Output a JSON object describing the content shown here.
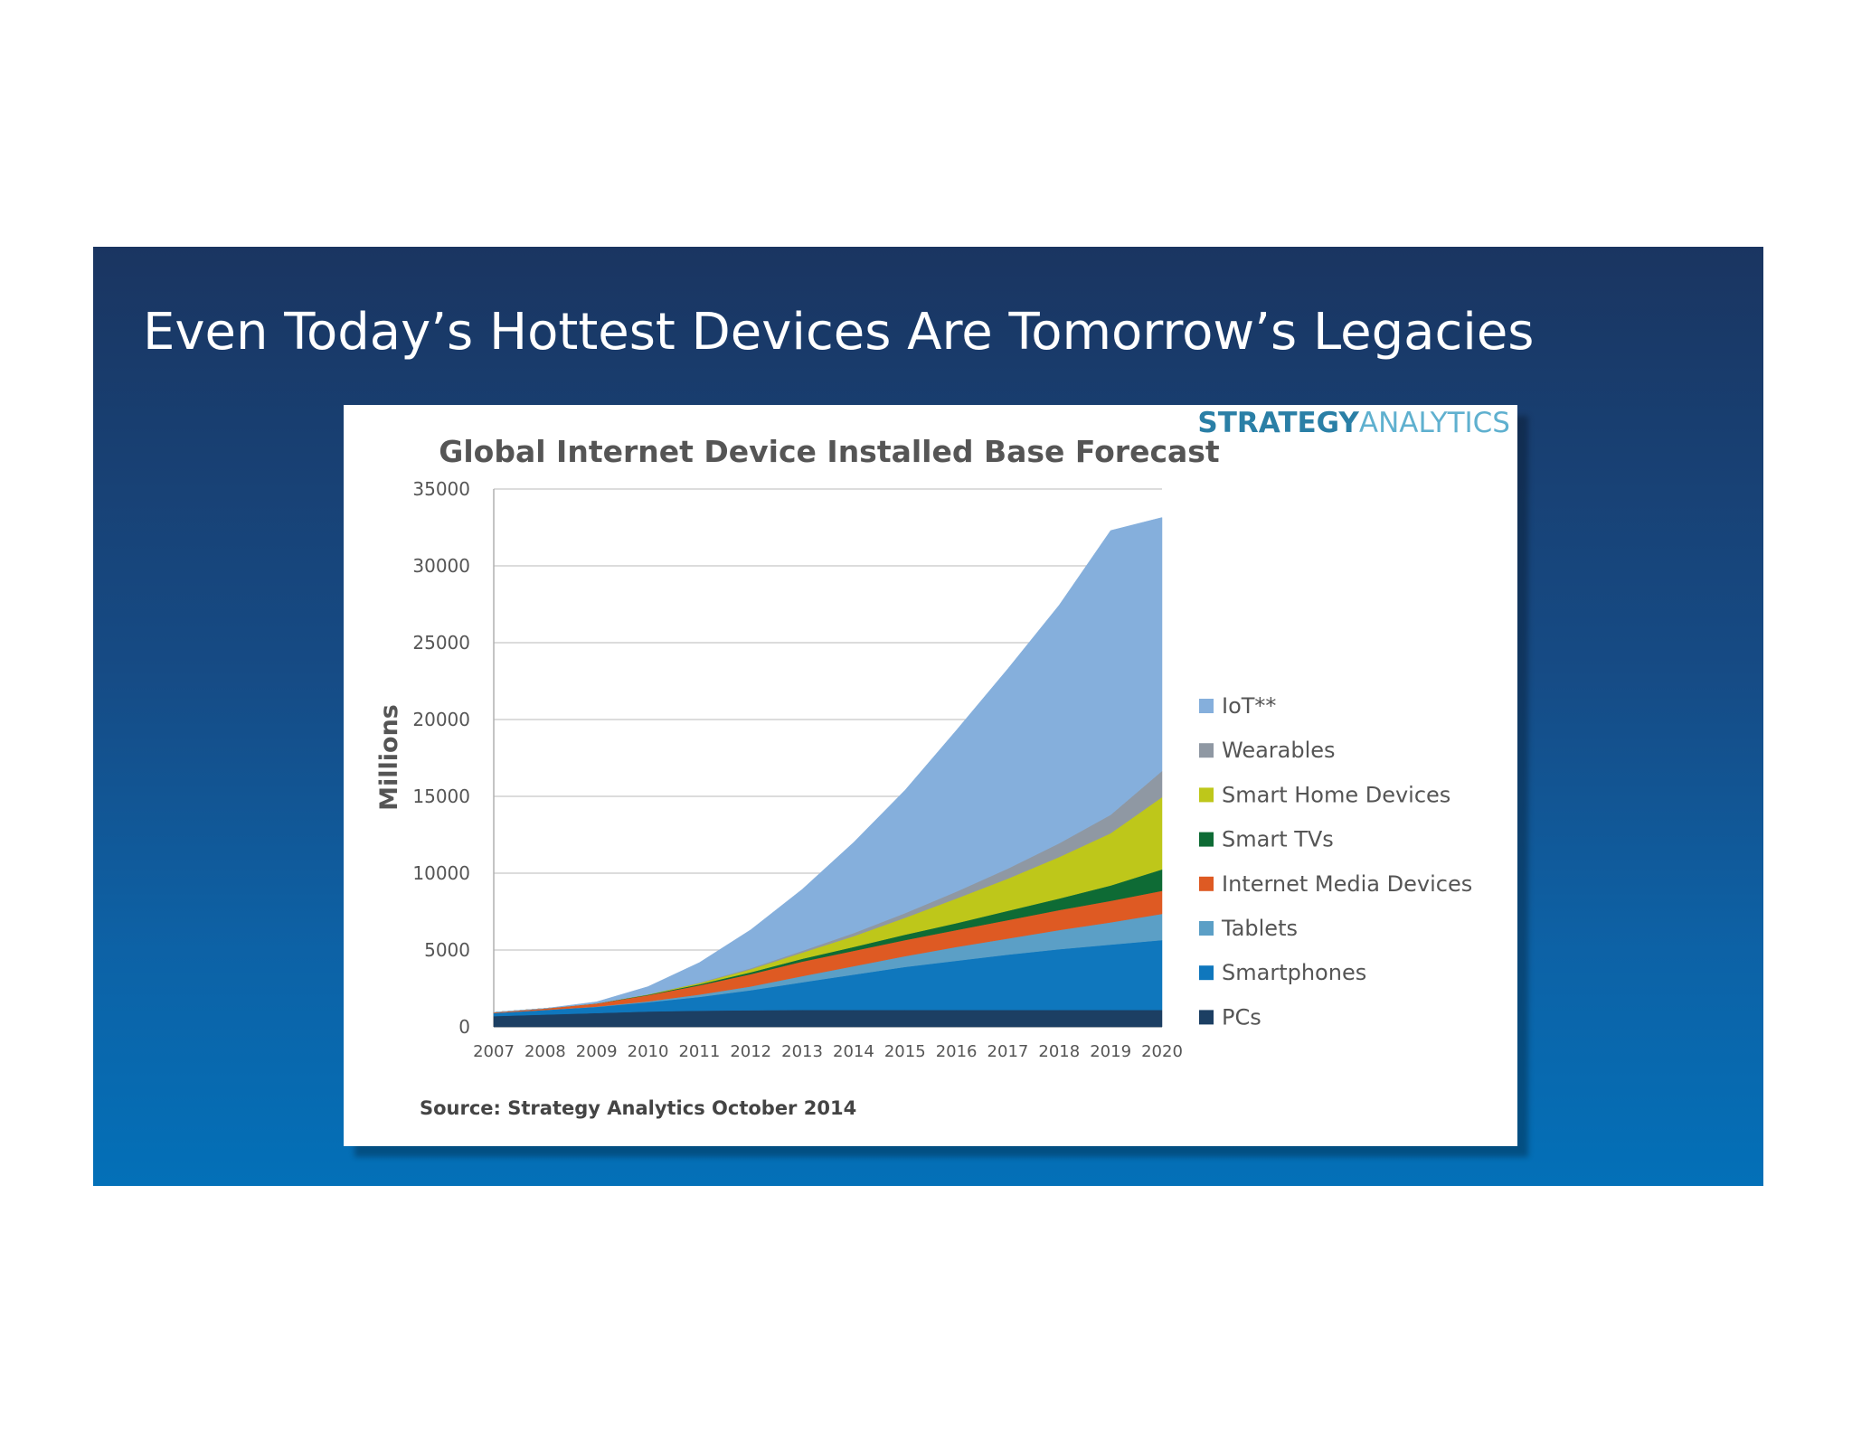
{
  "slide": {
    "title": "Even Today’s Hottest Devices Are Tomorrow’s Legacies"
  },
  "brand": {
    "part1": "STRATEGY",
    "part2": "ANALYTICS"
  },
  "chart_data": {
    "type": "area",
    "stacked": true,
    "title": "Global Internet Device Installed Base Forecast",
    "ylabel": "Millions",
    "xlabel": "",
    "ylim": [
      0,
      35000
    ],
    "yticks": [
      0,
      5000,
      10000,
      15000,
      20000,
      25000,
      30000,
      35000
    ],
    "grid": true,
    "legend_position": "right",
    "source": "Source: Strategy Analytics October 2014",
    "x": [
      "2007",
      "2008",
      "2009",
      "2010",
      "2011",
      "2012",
      "2013",
      "2014",
      "2015",
      "2016",
      "2017",
      "2018",
      "2019",
      "2020"
    ],
    "series": [
      {
        "name": "PCs",
        "color": "#1c3f63",
        "values": [
          700,
          800,
          900,
          1000,
          1050,
          1080,
          1100,
          1100,
          1100,
          1100,
          1100,
          1100,
          1100,
          1100
        ]
      },
      {
        "name": "Smartphones",
        "color": "#0f77bd",
        "values": [
          200,
          300,
          400,
          600,
          900,
          1300,
          1800,
          2300,
          2800,
          3200,
          3600,
          3950,
          4250,
          4550
        ]
      },
      {
        "name": "Tablets",
        "color": "#5b9fc6",
        "values": [
          0,
          0,
          20,
          60,
          150,
          250,
          400,
          550,
          700,
          900,
          1050,
          1250,
          1450,
          1700
        ]
      },
      {
        "name": "Internet Media Devices",
        "color": "#de5a23",
        "values": [
          50,
          100,
          200,
          400,
          600,
          800,
          950,
          1000,
          1050,
          1100,
          1200,
          1300,
          1400,
          1500
        ]
      },
      {
        "name": "Smart TVs",
        "color": "#0e6b35",
        "values": [
          0,
          0,
          10,
          30,
          70,
          120,
          180,
          250,
          350,
          450,
          600,
          750,
          1000,
          1400
        ]
      },
      {
        "name": "Smart Home Devices",
        "color": "#bec71a",
        "values": [
          0,
          0,
          0,
          20,
          80,
          200,
          400,
          700,
          1100,
          1600,
          2100,
          2700,
          3400,
          4700
        ]
      },
      {
        "name": "Wearables",
        "color": "#8f98a3",
        "values": [
          0,
          0,
          0,
          10,
          30,
          70,
          120,
          200,
          300,
          450,
          650,
          900,
          1200,
          1700
        ]
      },
      {
        "name": "IoT**",
        "color": "#85afdc",
        "values": [
          0,
          0,
          100,
          500,
          1300,
          2500,
          4000,
          5900,
          8000,
          10500,
          13000,
          15500,
          18500,
          16500
        ]
      }
    ]
  }
}
